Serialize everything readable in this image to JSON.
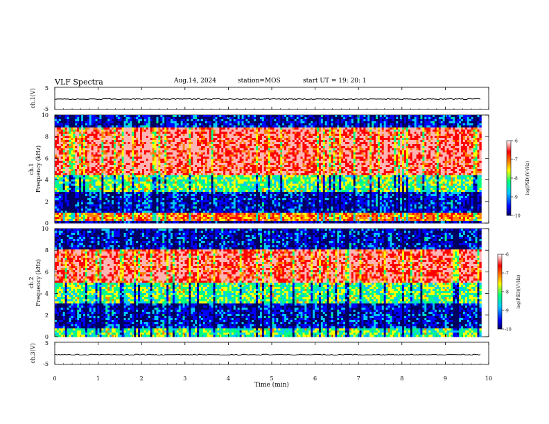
{
  "header": {
    "title": "VLF Spectra",
    "date": "Aug.14, 2024",
    "station": "station=MOS",
    "start_ut": "start  UT =   19: 20: 1"
  },
  "chart_data": [
    {
      "type": "line",
      "panel": "ch1-waveform",
      "ylabel": "ch.1(V)",
      "ylim": [
        -5,
        5
      ],
      "yticks": [
        "5",
        "-5"
      ],
      "xlim": [
        0,
        10
      ],
      "trace_level": -0.3
    },
    {
      "type": "heatmap",
      "panel": "ch1-spectrogram",
      "ylabel_channel": "ch.1",
      "ylabel": "Frequency (kHz)",
      "ylim": [
        0,
        10
      ],
      "yticks": [
        "0",
        "2",
        "4",
        "6",
        "8",
        "10"
      ],
      "xlim": [
        0,
        9.83
      ],
      "colorbar": {
        "label": "log(PSD)(V²/Hz)",
        "range": [
          -10,
          -6
        ],
        "ticks": [
          "-6",
          "-7",
          "-8",
          "-9",
          "-10"
        ]
      },
      "bands": [
        {
          "from_khz": 0.2,
          "to_khz": 0.9,
          "level": "high"
        },
        {
          "from_khz": 0.9,
          "to_khz": 2.8,
          "level": "low"
        },
        {
          "from_khz": 2.8,
          "to_khz": 4.5,
          "level": "medium"
        },
        {
          "from_khz": 4.5,
          "to_khz": 8.8,
          "level": "very high"
        },
        {
          "from_khz": 8.8,
          "to_khz": 10,
          "level": "low"
        }
      ]
    },
    {
      "type": "heatmap",
      "panel": "ch2-spectrogram",
      "ylabel_channel": "ch.2",
      "ylabel": "Frequency (kHz)",
      "ylim": [
        0,
        10
      ],
      "yticks": [
        "0",
        "2",
        "4",
        "6",
        "8",
        "10"
      ],
      "xlim": [
        0,
        9.83
      ],
      "colorbar": {
        "label": "log(PSD)(V²/Hz)",
        "range": [
          -10,
          -6
        ],
        "ticks": [
          "-6",
          "-7",
          "-8",
          "-9",
          "-10"
        ]
      },
      "bands": [
        {
          "from_khz": 0,
          "to_khz": 0.8,
          "level": "medium"
        },
        {
          "from_khz": 0.8,
          "to_khz": 3.0,
          "level": "low"
        },
        {
          "from_khz": 3.0,
          "to_khz": 5.0,
          "level": "medium"
        },
        {
          "from_khz": 5.0,
          "to_khz": 8.0,
          "level": "very high"
        },
        {
          "from_khz": 8.0,
          "to_khz": 10,
          "level": "low"
        }
      ]
    },
    {
      "type": "line",
      "panel": "ch3-waveform",
      "ylabel": "ch.3(V)",
      "ylim": [
        -5,
        5
      ],
      "yticks": [
        "5",
        "-5"
      ],
      "xlim": [
        0,
        10
      ],
      "trace_level": -0.6
    }
  ],
  "x_axis": {
    "label": "Time  (min)",
    "range": [
      0,
      10
    ],
    "ticks": [
      "0",
      "1",
      "2",
      "3",
      "4",
      "5",
      "6",
      "7",
      "8",
      "9",
      "10"
    ]
  },
  "colors": {
    "colormap": [
      "#000060",
      "#0000ff",
      "#00c8ff",
      "#00ff80",
      "#ffff00",
      "#ff8000",
      "#ff0000",
      "#ffb4b4",
      "#ffffff"
    ]
  }
}
